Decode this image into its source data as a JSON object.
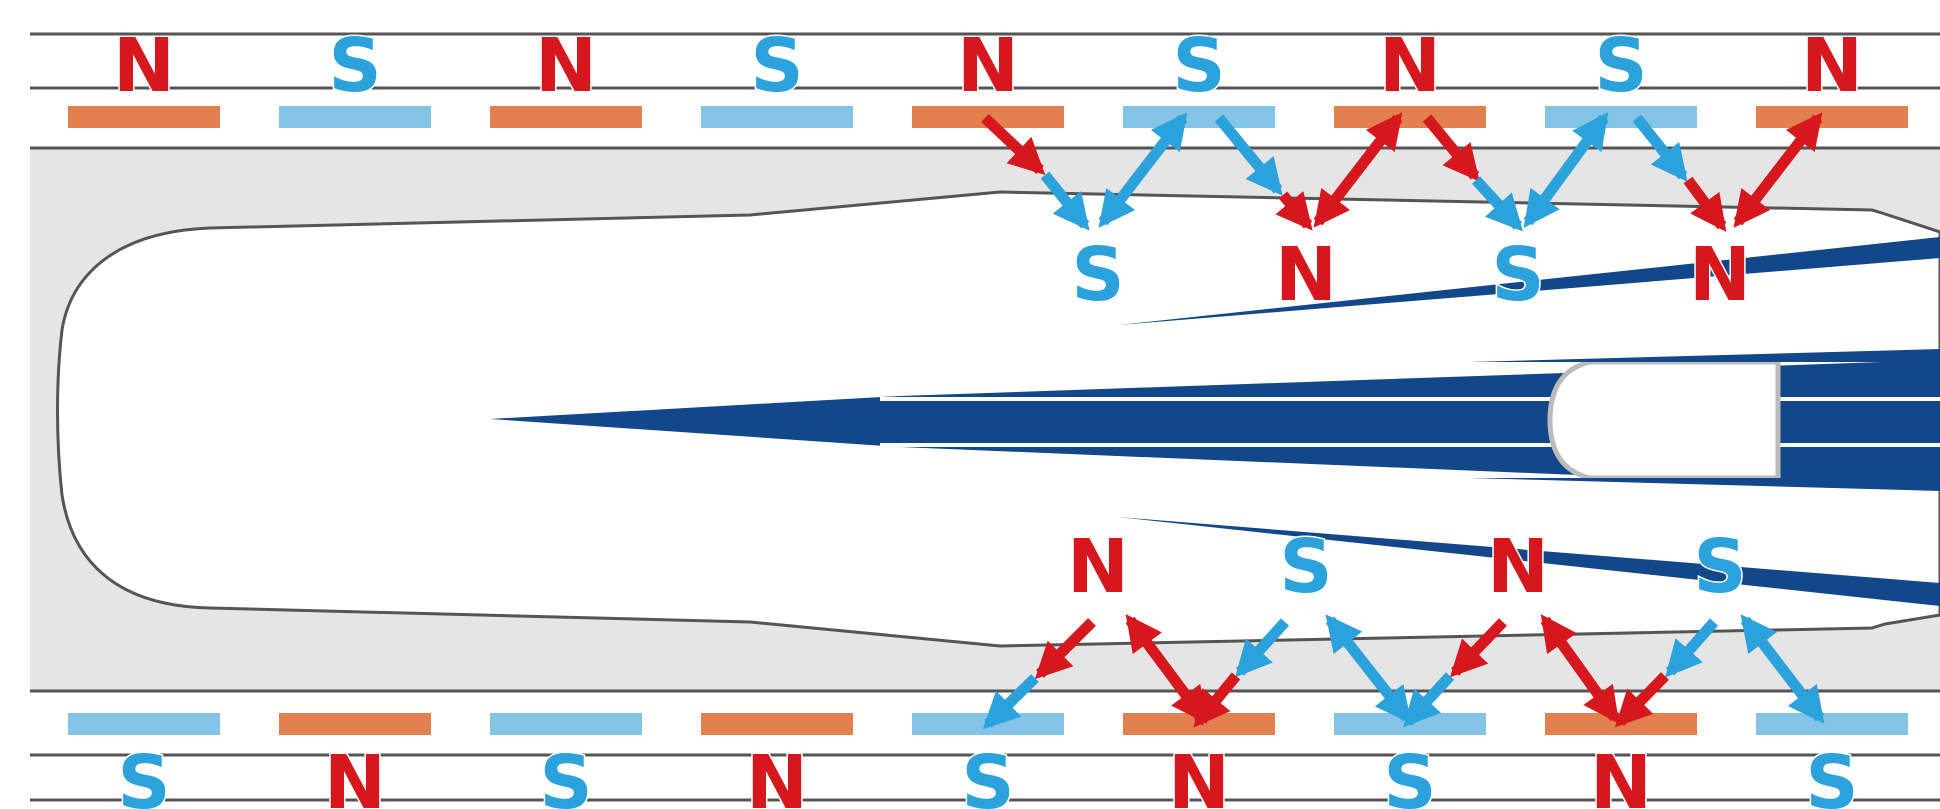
{
  "colors": {
    "north": "#d6171d",
    "south": "#2ba2dc",
    "north_magnet": "#e2804f",
    "south_magnet": "#84c5e7",
    "guideway_fill": "#e5e5e5",
    "rail_line": "#555555",
    "train_blue": "#12478a",
    "white": "#ffffff"
  },
  "top_magnets": [
    "N",
    "S",
    "N",
    "S",
    "N",
    "S",
    "N",
    "S",
    "N"
  ],
  "bottom_magnets": [
    "S",
    "N",
    "S",
    "N",
    "S",
    "N",
    "S",
    "N",
    "S"
  ],
  "train_top_poles": [
    "S",
    "N",
    "S",
    "N"
  ],
  "train_bottom_poles": [
    "N",
    "S",
    "N",
    "S"
  ],
  "icons": {
    "arrow": "double-headed-arrow-icon"
  }
}
